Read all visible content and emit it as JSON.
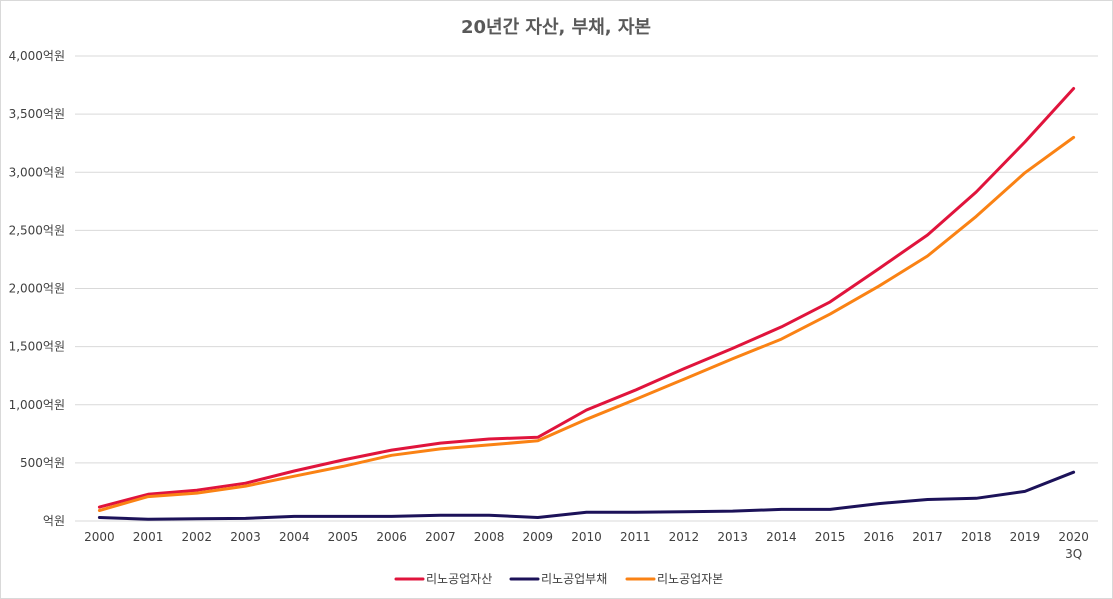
{
  "chart_data": {
    "type": "line",
    "title": "20년간 자산, 부채, 자본",
    "xlabel": "",
    "ylabel": "",
    "categories": [
      "2000",
      "2001",
      "2002",
      "2003",
      "2004",
      "2005",
      "2006",
      "2007",
      "2008",
      "2009",
      "2010",
      "2011",
      "2012",
      "2013",
      "2014",
      "2015",
      "2016",
      "2017",
      "2018",
      "2019",
      "2020\n3Q"
    ],
    "y_ticks": [
      {
        "value": 0,
        "label": "억원"
      },
      {
        "value": 500,
        "label": "500억원"
      },
      {
        "value": 1000,
        "label": "1,000억원"
      },
      {
        "value": 1500,
        "label": "1,500억원"
      },
      {
        "value": 2000,
        "label": "2,000억원"
      },
      {
        "value": 2500,
        "label": "2,500억원"
      },
      {
        "value": 3000,
        "label": "3,000억원"
      },
      {
        "value": 3500,
        "label": "3,500억원"
      },
      {
        "value": 4000,
        "label": "4,000억원"
      }
    ],
    "ylim": [
      0,
      4000
    ],
    "grid": true,
    "legend_position": "bottom",
    "series": [
      {
        "name": "리노공업자산",
        "color": "#e0143c",
        "values": [
          120,
          230,
          265,
          325,
          430,
          525,
          610,
          670,
          705,
          720,
          955,
          1125,
          1310,
          1485,
          1670,
          1885,
          2170,
          2460,
          2830,
          3260,
          3720
        ]
      },
      {
        "name": "리노공업부채",
        "color": "#1c1259",
        "values": [
          30,
          15,
          20,
          22,
          40,
          40,
          40,
          50,
          50,
          30,
          75,
          75,
          80,
          85,
          100,
          100,
          150,
          185,
          195,
          255,
          420
        ]
      },
      {
        "name": "리노공업자본",
        "color": "#fa8214",
        "values": [
          90,
          210,
          240,
          300,
          385,
          470,
          565,
          620,
          655,
          690,
          875,
          1045,
          1220,
          1395,
          1565,
          1780,
          2020,
          2280,
          2620,
          2995,
          3300
        ]
      }
    ]
  }
}
